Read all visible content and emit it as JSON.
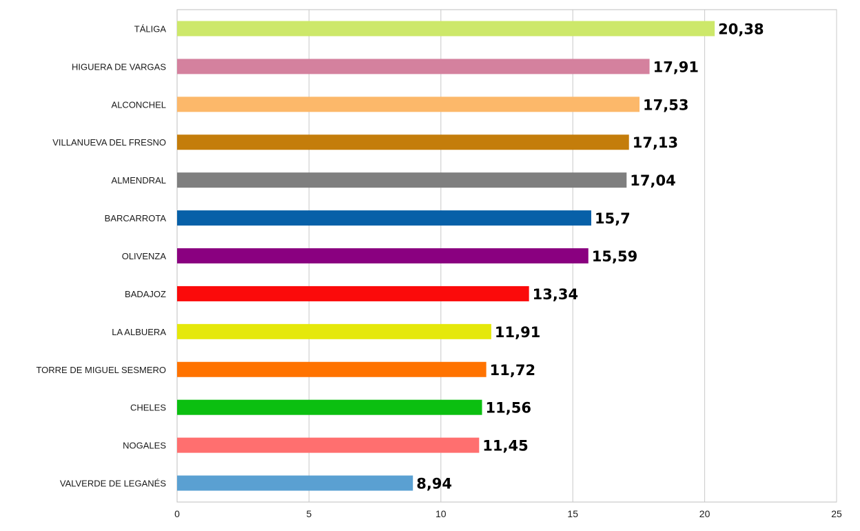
{
  "chart_data": {
    "type": "bar",
    "orientation": "horizontal",
    "title": "",
    "xlabel": "",
    "ylabel": "",
    "xlim": [
      0,
      25
    ],
    "x_ticks": [
      0,
      5,
      10,
      15,
      20,
      25
    ],
    "grid": true,
    "legend": "none",
    "categories": [
      "TÁLIGA",
      "HIGUERA DE VARGAS",
      "ALCONCHEL",
      "VILLANUEVA DEL FRESNO",
      "ALMENDRAL",
      "BARCARROTA",
      "OLIVENZA",
      "BADAJOZ",
      "LA ALBUERA",
      "TORRE DE MIGUEL SESMERO",
      "CHELES",
      "NOGALES",
      "VALVERDE DE LEGANÉS"
    ],
    "values": [
      20.38,
      17.91,
      17.53,
      17.13,
      17.04,
      15.7,
      15.59,
      13.34,
      11.91,
      11.72,
      11.56,
      11.45,
      8.94
    ],
    "value_labels": [
      "20,38",
      "17,91",
      "17,53",
      "17,13",
      "17,04",
      "15,7",
      "15,59",
      "13,34",
      "11,91",
      "11,72",
      "11,56",
      "11,45",
      "8,94"
    ],
    "colors": [
      "#cde86a",
      "#d4819e",
      "#fcb86a",
      "#c47d0b",
      "#7f7f7f",
      "#0760a8",
      "#8a0080",
      "#fb0a0a",
      "#e5e80b",
      "#ff7300",
      "#0bbf10",
      "#ff6f6f",
      "#5aa0d2"
    ]
  }
}
